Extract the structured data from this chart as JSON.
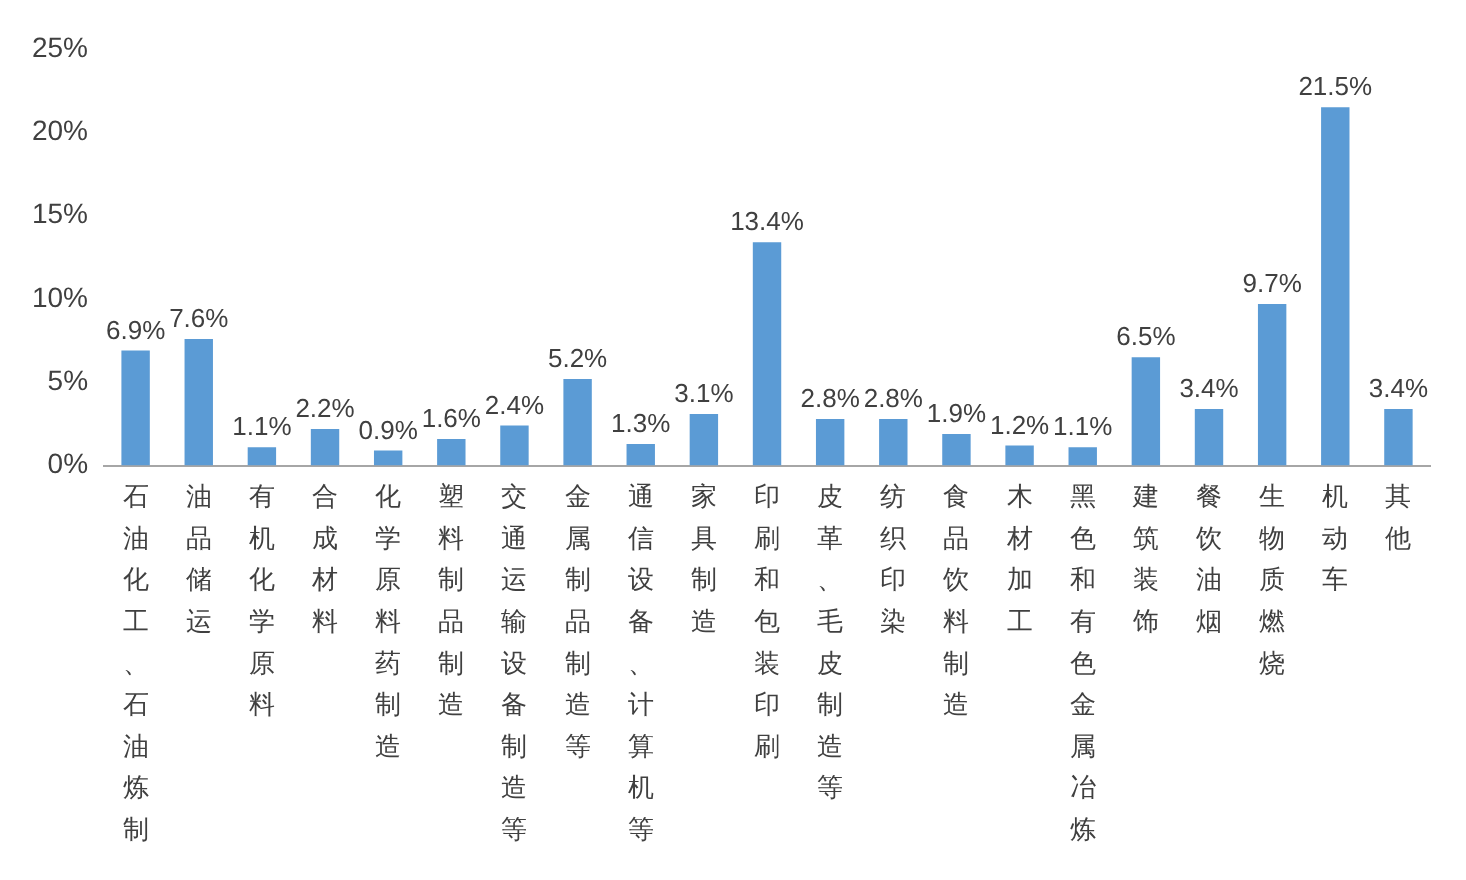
{
  "chart_data": {
    "type": "bar",
    "categories": [
      "石油化工、石油炼制",
      "油品储运",
      "有机化学原料",
      "合成材料",
      "化学原料药制造",
      "塑料制品制造",
      "交通运输设备制造等",
      "金属制品制造等",
      "通信设备、计算机等",
      "家具制造",
      "印刷和包装印刷",
      "皮革、毛皮制造等",
      "纺织印染",
      "食品饮料制造",
      "木材加工",
      "黑色和有色金属冶炼",
      "建筑装饰",
      "餐饮油烟",
      "生物质燃烧",
      "机动车",
      "其他"
    ],
    "values": [
      6.9,
      7.6,
      1.1,
      2.2,
      0.9,
      1.6,
      2.4,
      5.2,
      1.3,
      3.1,
      13.4,
      2.8,
      2.8,
      1.9,
      1.2,
      1.1,
      6.5,
      3.4,
      9.7,
      21.5,
      3.4
    ],
    "value_labels": [
      "6.9%",
      "7.6%",
      "1.1%",
      "2.2%",
      "0.9%",
      "1.6%",
      "2.4%",
      "5.2%",
      "1.3%",
      "3.1%",
      "13.4%",
      "2.8%",
      "2.8%",
      "1.9%",
      "1.2%",
      "1.1%",
      "6.5%",
      "3.4%",
      "9.7%",
      "21.5%",
      "3.4%"
    ],
    "color": "#5b9bd5",
    "ylim": [
      0,
      25
    ],
    "yticks": [
      {
        "value": 0,
        "label": "0%"
      },
      {
        "value": 5,
        "label": "5%"
      },
      {
        "value": 10,
        "label": "10%"
      },
      {
        "value": 15,
        "label": "15%"
      },
      {
        "value": 20,
        "label": "20%"
      },
      {
        "value": 25,
        "label": "25%"
      }
    ],
    "grid": false,
    "legend": false
  }
}
